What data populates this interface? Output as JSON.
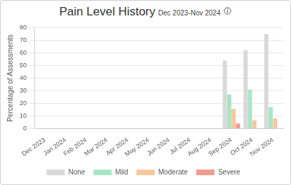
{
  "chart_data": {
    "type": "bar",
    "title": "Pain Level History",
    "subtitle": "Dec 2023-Nov 2024",
    "y_label": "Percentage of Assessments",
    "categories": [
      "Dec 2023",
      "Jan 2024",
      "Feb 2024",
      "Mar 2024",
      "Apr 2024",
      "May 2024",
      "Jun 2024",
      "Jul 2024",
      "Aug 2024",
      "Sep 2024",
      "Oct 2024",
      "Nov 2024"
    ],
    "series": [
      {
        "name": "None",
        "color": "#d9d9d9",
        "values": [
          null,
          null,
          null,
          null,
          null,
          null,
          null,
          null,
          null,
          54,
          62,
          75
        ]
      },
      {
        "name": "Mild",
        "color": "#a9e5c5",
        "values": [
          null,
          null,
          null,
          null,
          null,
          null,
          null,
          null,
          null,
          27,
          31,
          17
        ]
      },
      {
        "name": "Moderate",
        "color": "#f8c79d",
        "values": [
          null,
          null,
          null,
          null,
          null,
          null,
          null,
          null,
          null,
          15.5,
          6.5,
          8
        ]
      },
      {
        "name": "Severe",
        "color": "#f09b90",
        "values": [
          null,
          null,
          null,
          null,
          null,
          null,
          null,
          null,
          null,
          4,
          0,
          0
        ]
      }
    ],
    "ylim": [
      0,
      80
    ],
    "yticks": [
      0,
      10,
      20,
      30,
      40,
      50,
      60,
      70,
      80
    ],
    "grid": true,
    "legend": "bottom"
  }
}
